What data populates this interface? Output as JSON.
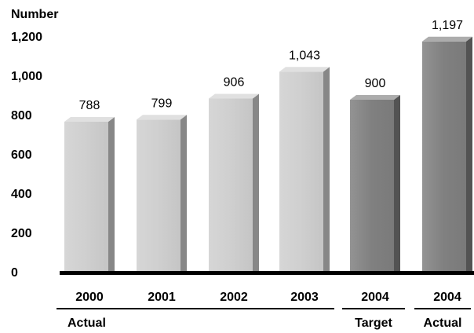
{
  "chart_data": {
    "type": "bar",
    "ylabel": "Number",
    "ylim": [
      0,
      1200
    ],
    "yticks": [
      "0",
      "200",
      "400",
      "600",
      "800",
      "1,000",
      "1,200"
    ],
    "ytick_values": [
      0,
      200,
      400,
      600,
      800,
      1000,
      1200
    ],
    "grid": false,
    "categories": [
      "2000",
      "2001",
      "2002",
      "2003",
      "2004",
      "2004"
    ],
    "values": [
      788,
      799,
      906,
      1043,
      900,
      1197
    ],
    "value_labels": [
      "788",
      "799",
      "906",
      "1,043",
      "900",
      "1,197"
    ],
    "bar_colors": [
      "#cfcfcf",
      "#cfcfcf",
      "#cfcfcf",
      "#cfcfcf",
      "#808080",
      "#808080"
    ],
    "groups": [
      {
        "label": "Actual",
        "first": 0,
        "last": 3
      },
      {
        "label": "Target",
        "first": 4,
        "last": 4
      },
      {
        "label": "Actual",
        "first": 5,
        "last": 5
      }
    ]
  }
}
